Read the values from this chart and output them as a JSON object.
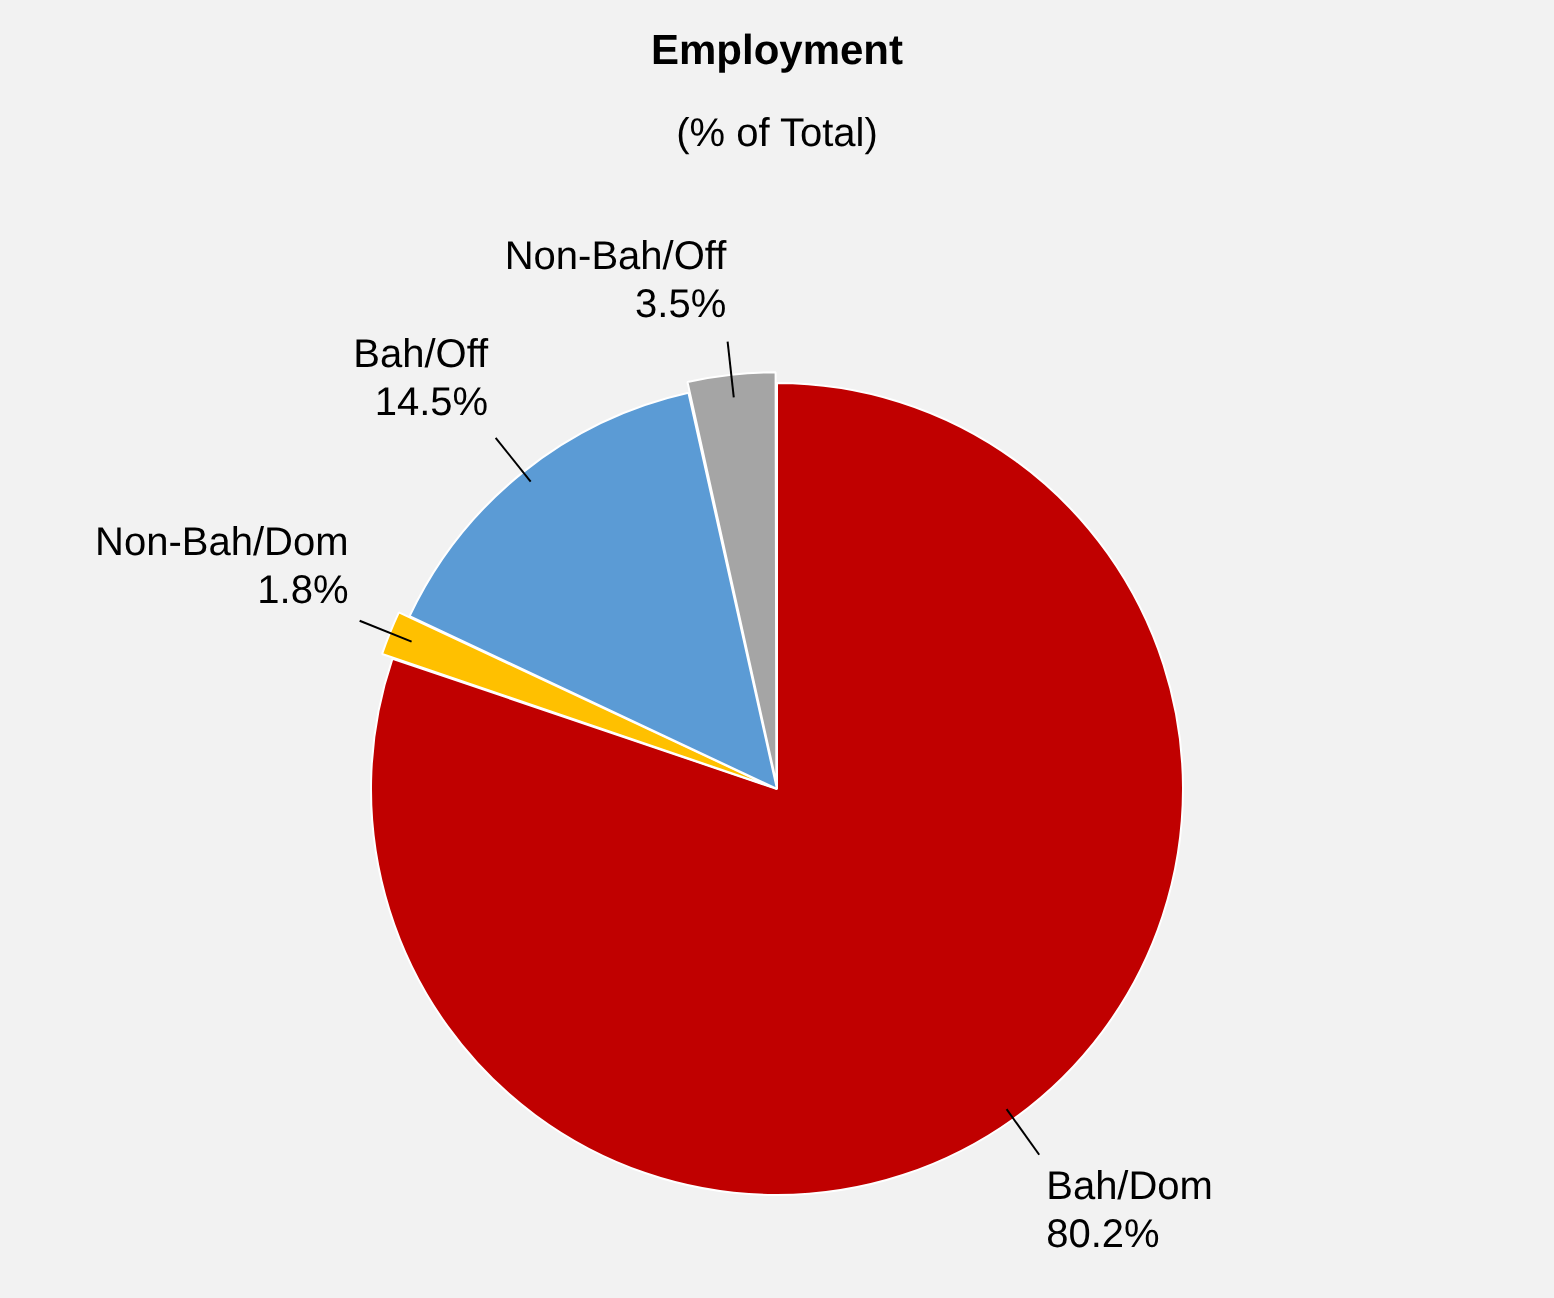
{
  "chart_data": {
    "type": "pie",
    "title": "Employment",
    "subtitle": "(% of Total)",
    "categories": [
      "Bah/Dom",
      "Non-Bah/Dom",
      "Bah/Off",
      "Non-Bah/Off"
    ],
    "values": [
      80.2,
      1.8,
      14.5,
      3.5
    ],
    "colors": [
      "#c00000",
      "#ffc000",
      "#5b9bd5",
      "#a5a5a5"
    ],
    "value_labels": [
      "80.2%",
      "1.8%",
      "14.5%",
      "3.5%"
    ],
    "legend": false
  }
}
